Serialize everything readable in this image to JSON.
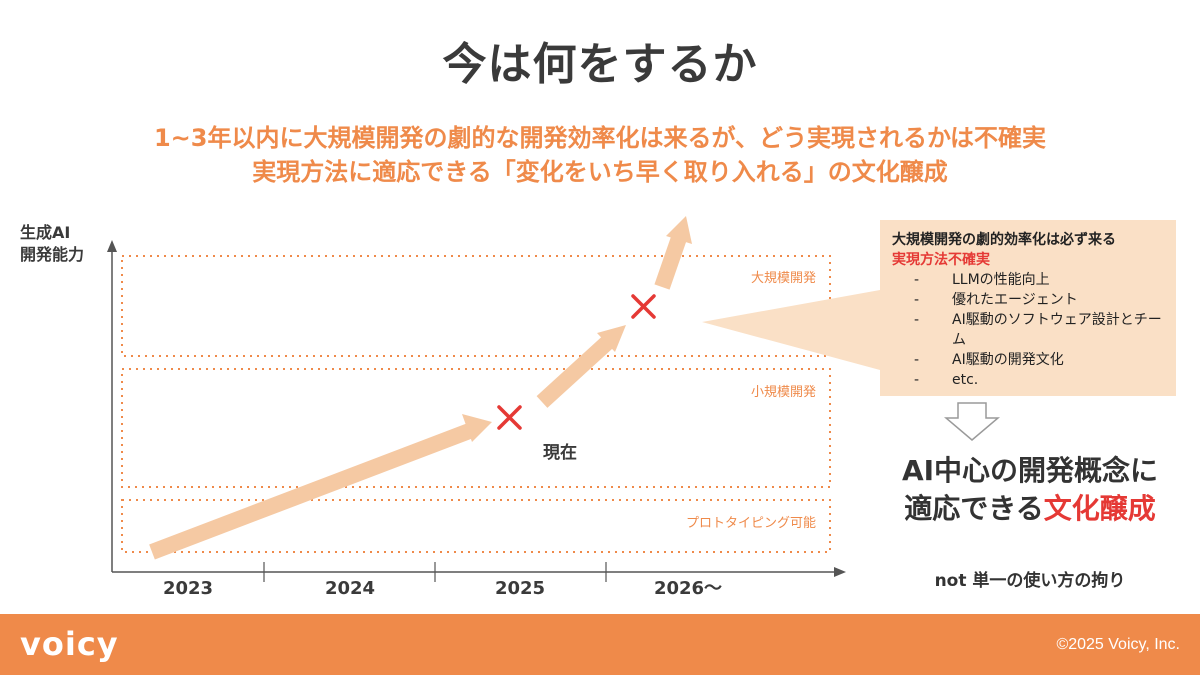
{
  "title": "今は何をするか",
  "subtitle_line1": "1~3年以内に大規模開発の劇的な開発効率化は来るが、どう実現されるかは不確実",
  "subtitle_line2": "実現方法に適応できる「変化をいち早く取り入れる」の文化醸成",
  "colors": {
    "accent": "#ef8a4a",
    "arrow": "#f5c9a3",
    "marker": "#e53935",
    "callout_bg": "#fae0c6",
    "red_text": "#e53935"
  },
  "diagram": {
    "y_axis_label": [
      "生成AI",
      "開発能力"
    ],
    "x_ticks": [
      "2023",
      "2024",
      "2025",
      "2026〜"
    ],
    "bands": [
      "大規模開発",
      "小規模開発",
      "プロトタイピング可能"
    ],
    "current_label": "現在",
    "markers": [
      "cross-marker",
      "cross-marker"
    ]
  },
  "callout": {
    "head": "大規模開発の劇的効率化は必ず来る",
    "head_red": "実現方法不確実",
    "items": [
      {
        "dash": "-",
        "text": "LLMの性能向上"
      },
      {
        "dash": "-",
        "text": "優れたエージェント"
      },
      {
        "dash": "-",
        "text": "AI駆動のソフトウェア設計とチーム"
      },
      {
        "dash": "-",
        "text": "AI駆動の開発文化"
      },
      {
        "dash": "-",
        "text": "etc."
      }
    ]
  },
  "concept": {
    "line1": "AI中心の開発概念に",
    "line2_plain": "適応できる",
    "line2_red": "文化醸成"
  },
  "note": "not 単一の使い方の拘り",
  "footer": {
    "logo": "voicy",
    "copyright": "©2025  Voicy, Inc."
  }
}
